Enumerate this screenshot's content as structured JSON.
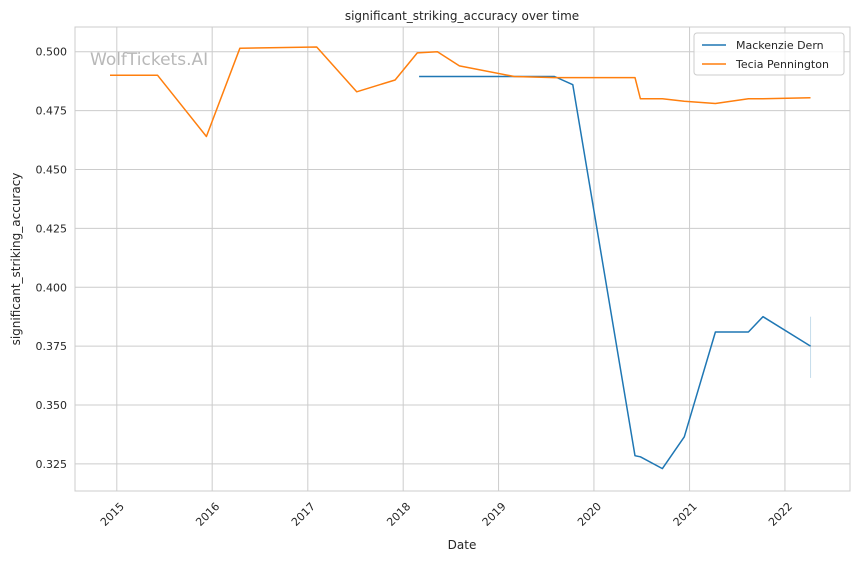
{
  "chart_data": {
    "type": "line",
    "title": "significant_striking_accuracy over time",
    "xlabel": "Date",
    "ylabel": "significant_striking_accuracy",
    "watermark": "WolfTickets.AI",
    "x_ticks": [
      "2015",
      "2016",
      "2017",
      "2018",
      "2019",
      "2020",
      "2021",
      "2022"
    ],
    "y_ticks": [
      "0.325",
      "0.350",
      "0.375",
      "0.400",
      "0.425",
      "0.450",
      "0.475",
      "0.500"
    ],
    "xlim": [
      "2014-07-25",
      "2022-09-07"
    ],
    "ylim": [
      0.3135,
      0.5105
    ],
    "grid": true,
    "legend_position": "top-right",
    "series": [
      {
        "name": "Mackenzie Dern",
        "color": "#1f77b4",
        "points": [
          [
            "2018-03-03",
            0.4895
          ],
          [
            "2019-08-03",
            0.4895
          ],
          [
            "2019-10-12",
            0.486
          ],
          [
            "2020-06-06",
            0.3285
          ],
          [
            "2020-06-27",
            0.328
          ],
          [
            "2020-09-19",
            0.323
          ],
          [
            "2020-12-12",
            0.3365
          ],
          [
            "2021-04-10",
            0.381
          ],
          [
            "2021-08-14",
            0.381
          ],
          [
            "2021-10-09",
            0.3875
          ],
          [
            "2022-04-09",
            0.375
          ]
        ],
        "error_bar": {
          "x": "2022-04-09",
          "low": 0.3615,
          "high": 0.3875
        }
      },
      {
        "name": "Tecia Pennington",
        "color": "#ff7f0e",
        "points": [
          [
            "2014-12-06",
            0.49
          ],
          [
            "2015-06-06",
            0.49
          ],
          [
            "2015-12-10",
            0.464
          ],
          [
            "2016-04-16",
            0.5015
          ],
          [
            "2017-02-04",
            0.502
          ],
          [
            "2017-07-07",
            0.483
          ],
          [
            "2017-12-01",
            0.488
          ],
          [
            "2018-02-24",
            0.4995
          ],
          [
            "2018-05-12",
            0.5
          ],
          [
            "2018-08-04",
            0.494
          ],
          [
            "2019-03-02",
            0.4895
          ],
          [
            "2019-08-03",
            0.489
          ],
          [
            "2020-06-06",
            0.489
          ],
          [
            "2020-06-27",
            0.48
          ],
          [
            "2020-09-19",
            0.48
          ],
          [
            "2020-12-12",
            0.479
          ],
          [
            "2021-04-10",
            0.478
          ],
          [
            "2021-08-14",
            0.48
          ],
          [
            "2021-10-09",
            0.48
          ],
          [
            "2022-04-09",
            0.4805
          ]
        ]
      }
    ]
  }
}
